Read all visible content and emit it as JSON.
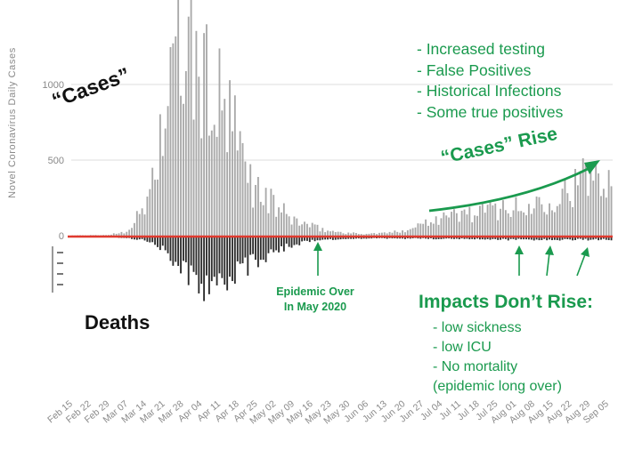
{
  "annotations": {
    "reasons": [
      "- Increased testing",
      "- False Positives",
      "- Historical Infections",
      "- Some true positives"
    ],
    "cases_label": "“Cases”",
    "deaths_label": "Deaths",
    "rise_label": "“Cases” Rise",
    "epidemic_over": [
      "Epidemic Over",
      "In May 2020"
    ],
    "impacts_title": "Impacts Don’t Rise:",
    "impacts_list": [
      "- low sickness",
      "- low ICU",
      "- No mortality",
      "(epidemic long over)"
    ]
  },
  "colors": {
    "accent_green": "#1a9a4e",
    "case_bar": "#a9a9a9",
    "death_bar": "#2b2b2b",
    "zero_line": "#e03a2f"
  },
  "chart_data": {
    "type": "bar",
    "title": "",
    "xlabel": "",
    "ylabel": "Novel Coronavirus Daily Cases",
    "ylim": [
      0,
      1400
    ],
    "yticks": [
      0,
      500,
      1000
    ],
    "grid": true,
    "x_tick_labels": [
      "Feb 15",
      "Feb 22",
      "Feb 29",
      "Mar 07",
      "Mar 14",
      "Mar 21",
      "Mar 28",
      "Apr 04",
      "Apr 11",
      "Apr 18",
      "Apr 25",
      "May 02",
      "May 09",
      "May 16",
      "May 23",
      "May 30",
      "Jun 06",
      "Jun 13",
      "Jun 20",
      "Jun 27",
      "Jul 04",
      "Jul 11",
      "Jul 18",
      "Jul 25",
      "Aug 01",
      "Aug 08",
      "Aug 15",
      "Aug 22",
      "Aug 29",
      "Sep 05"
    ],
    "cases_weekly": [
      2,
      3,
      5,
      30,
      180,
      700,
      1250,
      1050,
      900,
      650,
      330,
      220,
      120,
      70,
      35,
      20,
      12,
      15,
      25,
      60,
      120,
      130,
      150,
      165,
      200,
      160,
      240,
      280,
      340,
      420
    ],
    "deaths_weekly": [
      0,
      0,
      0,
      2,
      10,
      40,
      120,
      170,
      160,
      130,
      90,
      60,
      30,
      15,
      8,
      5,
      4,
      3,
      5,
      3,
      5,
      5,
      5,
      6,
      8,
      8,
      9,
      9,
      8,
      8
    ],
    "deaths_scale_max": 200
  }
}
